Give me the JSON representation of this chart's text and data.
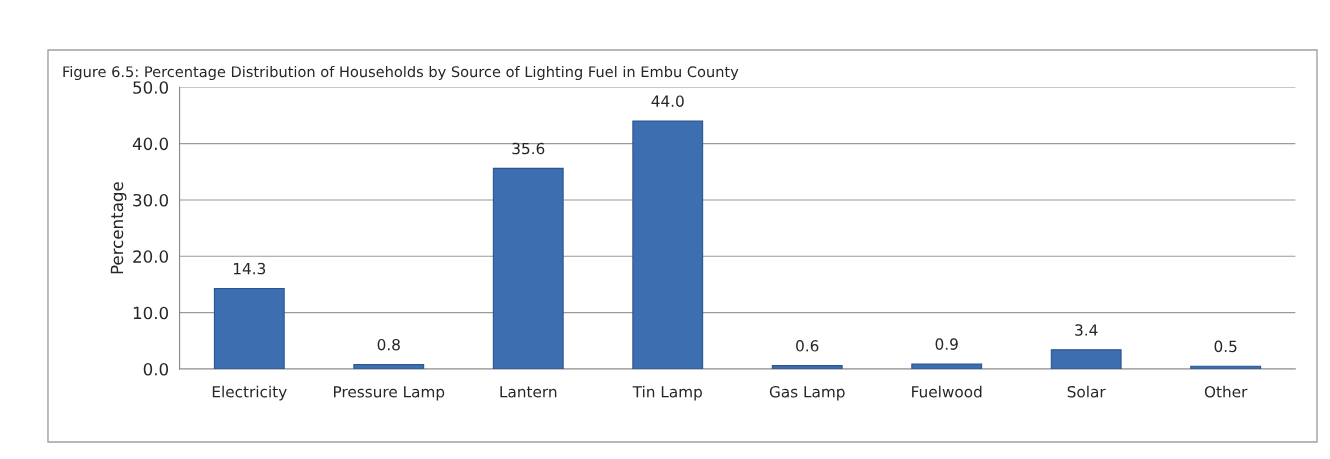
{
  "chart_data": {
    "type": "bar",
    "title": "Figure 6.5: Percentage Distribution of Households by Source of Lighting Fuel in Embu County",
    "ylabel": "Percentage",
    "categories": [
      "Electricity",
      "Pressure Lamp",
      "Lantern",
      "Tin Lamp",
      "Gas Lamp",
      "Fuelwood",
      "Solar",
      "Other"
    ],
    "values": [
      14.3,
      0.8,
      35.6,
      44.0,
      0.6,
      0.9,
      3.4,
      0.5
    ],
    "value_labels": [
      "14.3",
      "0.8",
      "35.6",
      "44.0",
      "0.6",
      "0.9",
      "3.4",
      "0.5"
    ],
    "color": "#3d6fb0",
    "ylim": [
      0,
      50
    ],
    "yticks": [
      {
        "value": 0,
        "label": "0.0"
      },
      {
        "value": 10,
        "label": "10.0"
      },
      {
        "value": 20,
        "label": "20.0"
      },
      {
        "value": 30,
        "label": "30.0"
      },
      {
        "value": 40,
        "label": "40.0"
      },
      {
        "value": 50,
        "label": "50.0"
      }
    ],
    "grid": "y",
    "legend": false
  }
}
